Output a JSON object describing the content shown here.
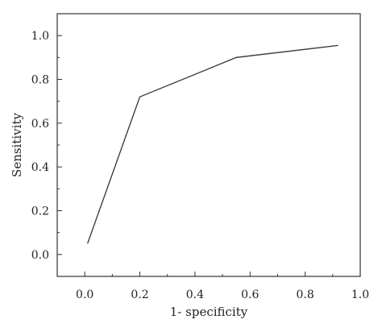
{
  "chart_data": {
    "type": "line",
    "title": "",
    "xlabel": "1- specificity",
    "ylabel": "Sensitivity",
    "xlim": [
      -0.1,
      1.0
    ],
    "ylim": [
      -0.1,
      1.1
    ],
    "x_ticks": [
      0.0,
      0.2,
      0.4,
      0.6,
      0.8,
      1.0
    ],
    "x_tick_labels": [
      "0.0",
      "0.2",
      "0.4",
      "0.6",
      "0.8",
      "1.0"
    ],
    "y_ticks": [
      0.0,
      0.2,
      0.4,
      0.6,
      0.8,
      1.0
    ],
    "y_tick_labels": [
      "0.0",
      "0.2",
      "0.4",
      "0.6",
      "0.8",
      "1.0"
    ],
    "grid": false,
    "series": [
      {
        "x": [
          0.01,
          0.2,
          0.55,
          0.92
        ],
        "y": [
          0.05,
          0.72,
          0.9,
          0.955
        ]
      }
    ],
    "colors": {
      "line": "#333333",
      "axis": "#333333"
    }
  }
}
